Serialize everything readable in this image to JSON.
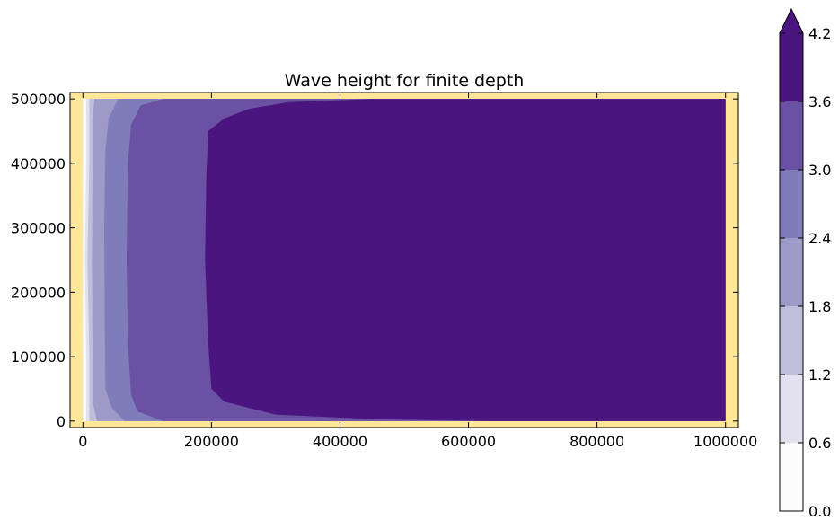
{
  "chart_data": {
    "type": "heatmap",
    "title": "Wave height for finite depth",
    "xlabel": "",
    "ylabel": "",
    "xlim": [
      -20000,
      1020000
    ],
    "ylim": [
      -10000,
      510000
    ],
    "domain": {
      "x": [
        0,
        1000000
      ],
      "y": [
        0,
        500000
      ]
    },
    "xticks": [
      0,
      200000,
      400000,
      600000,
      800000,
      1000000
    ],
    "xtick_labels": [
      "0",
      "200000",
      "400000",
      "600000",
      "800000",
      "1000000"
    ],
    "yticks": [
      0,
      100000,
      200000,
      300000,
      400000,
      500000
    ],
    "ytick_labels": [
      "0",
      "100000",
      "200000",
      "300000",
      "400000",
      "500000"
    ],
    "background_color": "#ffe699",
    "colormap": "Purples",
    "levels": [
      0.0,
      0.6,
      1.2,
      1.8,
      2.4,
      3.0,
      3.6,
      4.2
    ],
    "colorbar_labels": [
      "0.0",
      "0.6",
      "1.2",
      "1.8",
      "2.4",
      "3.0",
      "3.6",
      "4.2"
    ],
    "colorbar_extend": "max",
    "level_colors": [
      "#fbfafd",
      "#e2e1ef",
      "#bfbedc",
      "#9e9ac8",
      "#7f7db9",
      "#6a51a3",
      "#4b1580"
    ],
    "contour_boundaries": [
      {
        "level": 0.6,
        "points": [
          [
            5000,
            0
          ],
          [
            5000,
            100000
          ],
          [
            3000,
            250000
          ],
          [
            5000,
            400000
          ],
          [
            5000,
            500000
          ]
        ]
      },
      {
        "level": 1.2,
        "points": [
          [
            10000,
            0
          ],
          [
            10000,
            100000
          ],
          [
            7000,
            250000
          ],
          [
            10000,
            400000
          ],
          [
            10000,
            500000
          ]
        ]
      },
      {
        "level": 1.8,
        "points": [
          [
            22000,
            0
          ],
          [
            15000,
            30000
          ],
          [
            15000,
            100000
          ],
          [
            14000,
            250000
          ],
          [
            15000,
            400000
          ],
          [
            15000,
            470000
          ],
          [
            18000,
            500000
          ]
        ]
      },
      {
        "level": 2.4,
        "points": [
          [
            65000,
            0
          ],
          [
            45000,
            20000
          ],
          [
            35000,
            50000
          ],
          [
            34000,
            150000
          ],
          [
            33000,
            300000
          ],
          [
            35000,
            420000
          ],
          [
            40000,
            470000
          ],
          [
            55000,
            500000
          ]
        ]
      },
      {
        "level": 3.0,
        "points": [
          [
            125000,
            0
          ],
          [
            85000,
            15000
          ],
          [
            75000,
            40000
          ],
          [
            70000,
            120000
          ],
          [
            68000,
            250000
          ],
          [
            70000,
            400000
          ],
          [
            75000,
            460000
          ],
          [
            90000,
            490000
          ],
          [
            125000,
            500000
          ]
        ]
      },
      {
        "level": 3.6,
        "points": [
          [
            630000,
            0
          ],
          [
            450000,
            3000
          ],
          [
            300000,
            10000
          ],
          [
            220000,
            30000
          ],
          [
            200000,
            50000
          ],
          [
            195000,
            120000
          ],
          [
            190000,
            250000
          ],
          [
            192000,
            380000
          ],
          [
            195000,
            450000
          ],
          [
            220000,
            470000
          ],
          [
            260000,
            485000
          ],
          [
            320000,
            495000
          ],
          [
            450000,
            500000
          ],
          [
            630000,
            500000
          ]
        ]
      }
    ]
  }
}
